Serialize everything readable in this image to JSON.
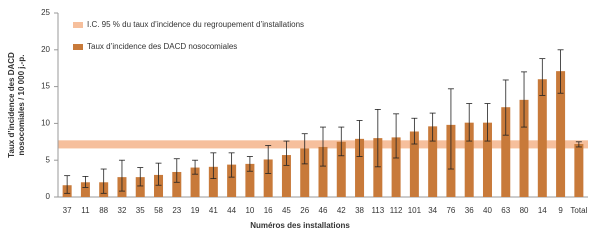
{
  "chart_data": {
    "type": "bar",
    "categories": [
      "37",
      "11",
      "88",
      "32",
      "35",
      "58",
      "23",
      "19",
      "41",
      "44",
      "10",
      "16",
      "45",
      "26",
      "46",
      "42",
      "38",
      "113",
      "112",
      "101",
      "34",
      "76",
      "36",
      "40",
      "63",
      "80",
      "14",
      "9",
      "Total"
    ],
    "series": [
      {
        "name": "Taux d’incidence des DACD nosocomiales",
        "color": "#c87a3a",
        "values": [
          1.6,
          2.0,
          2.0,
          2.7,
          2.7,
          3.0,
          3.4,
          4.0,
          4.1,
          4.4,
          4.5,
          5.1,
          5.7,
          6.6,
          6.8,
          7.5,
          7.9,
          8.0,
          8.1,
          8.9,
          9.6,
          9.8,
          10.1,
          10.1,
          12.2,
          13.2,
          16.0,
          17.1,
          7.2
        ],
        "lower": [
          0.5,
          1.3,
          0.5,
          0.8,
          1.5,
          1.6,
          2.0,
          3.1,
          2.5,
          2.7,
          3.5,
          3.2,
          4.3,
          4.5,
          4.2,
          5.6,
          5.5,
          4.1,
          5.3,
          7.2,
          7.6,
          3.8,
          7.6,
          7.6,
          8.4,
          9.5,
          13.8,
          14.1,
          6.8
        ],
        "upper": [
          2.9,
          2.8,
          3.8,
          5.0,
          4.0,
          4.6,
          5.2,
          5.0,
          6.0,
          6.0,
          5.5,
          7.0,
          7.6,
          8.6,
          9.5,
          9.5,
          10.4,
          11.9,
          11.3,
          10.7,
          11.4,
          14.7,
          12.7,
          12.7,
          15.9,
          17.0,
          18.8,
          20.0,
          7.5
        ]
      }
    ],
    "band": {
      "name": "I.C. 95 % du taux d’incidence du regroupement d’installations",
      "low": 6.6,
      "high": 7.7,
      "color": "#f6bf9c"
    },
    "y_label": [
      "Taux d’incidence des DACD",
      "nosocomiales  / 10 000 j.-p."
    ],
    "x_label": "Numéros des installations",
    "ylim": [
      0,
      25
    ],
    "yticks": [
      0,
      5,
      10,
      15,
      20,
      25
    ]
  }
}
